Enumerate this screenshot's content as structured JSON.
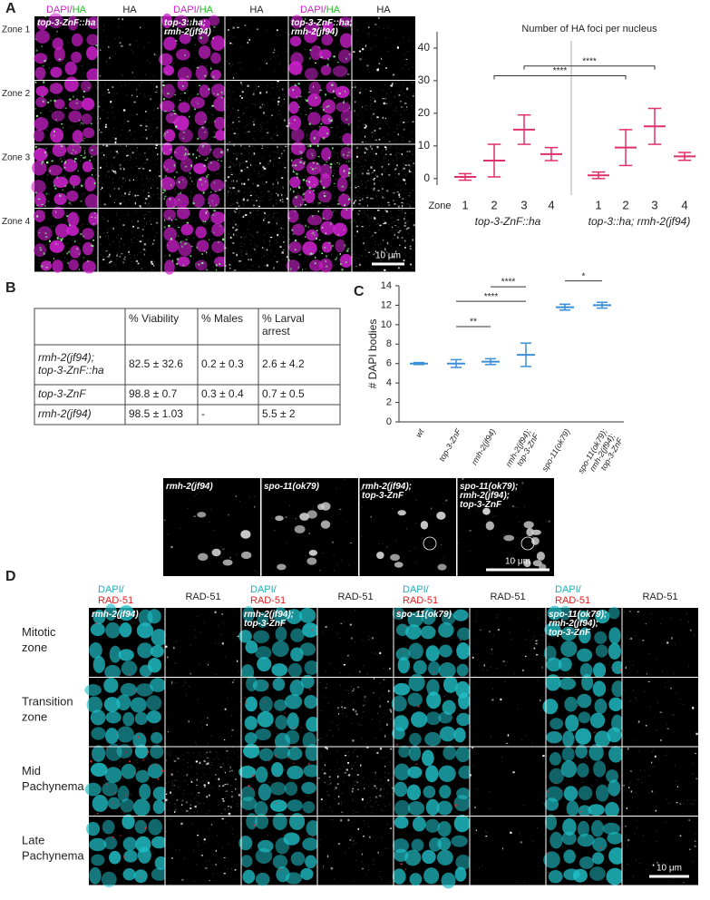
{
  "panel_a": {
    "label": "A",
    "zones": [
      "Zone 1",
      "Zone 2",
      "Zone 3",
      "Zone 4"
    ],
    "columns": [
      {
        "overlay": [
          "DAPI",
          "/",
          "HA"
        ],
        "single": "HA",
        "genotype": "top-3-ZnF::ha"
      },
      {
        "overlay": [
          "DAPI",
          "/",
          "HA"
        ],
        "single": "HA",
        "genotype": "top-3::ha; rmh-2(jf94)"
      },
      {
        "overlay": [
          "DAPI",
          "/",
          "HA"
        ],
        "single": "HA",
        "genotype": "top-3-ZnF::ha; rmh-2(jf94)"
      }
    ],
    "scale_bar": "10 μm"
  },
  "panel_b": {
    "label": "B",
    "header": [
      "% Viability",
      "% Males",
      "% Larval arrest"
    ],
    "rows": [
      [
        "rmh-2(jf94); top-3-ZnF::ha",
        "82.5  ± 32.6",
        "0.2 ± 0.3",
        "2.6 ± 4.2"
      ],
      [
        "top-3-ZnF",
        "98.8 ± 0.7",
        "0.3 ± 0.4",
        "0.7 ± 0.5"
      ],
      [
        "rmh-2(jf94)",
        "98.5 ± 1.03",
        "-",
        "5.5 ± 2"
      ]
    ]
  },
  "panel_c": {
    "label": "C",
    "images": [
      "rmh-2(jf94)",
      "spo-11(ok79)",
      "rmh-2(jf94); top-3-ZnF",
      "spo-11(ok79); rmh-2(jf94); top-3-ZnF"
    ],
    "scale_bar": "10 μm"
  },
  "panel_d": {
    "label": "D",
    "rows": [
      "Mitotic zone",
      "Transition zone",
      "Mid Pachynema",
      "Late Pachynema"
    ],
    "columns": [
      {
        "overlay": [
          "DAPI/",
          "RAD-51"
        ],
        "single": "RAD-51",
        "genotype": "rmh-2(jf94)"
      },
      {
        "overlay": [
          "DAPI/",
          "RAD-51"
        ],
        "single": "RAD-51",
        "genotype": "rmh-2(jf94); top-3-ZnF"
      },
      {
        "overlay": [
          "DAPI/",
          "RAD-51"
        ],
        "single": "RAD-51",
        "genotype": "spo-11(ok79)"
      },
      {
        "overlay": [
          "DAPI/",
          "RAD-51"
        ],
        "single": "RAD-51",
        "genotype": "spo-11(ok79); rmh-2(jf94); top-3-ZnF"
      }
    ],
    "scale_bar": "10 μm"
  },
  "chart_data": [
    {
      "type": "scatter",
      "title": "Number of HA foci per nucleus",
      "x_label": "Zone",
      "groups": [
        {
          "name": "top-3-ZnF::ha",
          "categories": [
            "1",
            "2",
            "3",
            "4"
          ],
          "values": [
            0.5,
            5.5,
            15,
            7.5
          ],
          "errors": [
            1,
            5,
            4.5,
            2
          ]
        },
        {
          "name": "top-3::ha; rmh-2(jf94)",
          "categories": [
            "1",
            "2",
            "3",
            "4"
          ],
          "values": [
            1,
            9.5,
            16,
            6.8
          ],
          "errors": [
            1,
            5.5,
            5.5,
            1.2
          ]
        }
      ],
      "ylim": [
        -2,
        45
      ],
      "yticks": [
        0,
        10,
        20,
        30,
        40
      ],
      "color": "#e0306a",
      "comparisons": [
        {
          "label": "****",
          "from": [
            0,
            1
          ],
          "to": [
            1,
            1
          ],
          "y": 31.5
        },
        {
          "label": "****",
          "from": [
            0,
            2
          ],
          "to": [
            1,
            2
          ],
          "y": 34.5
        }
      ]
    },
    {
      "type": "scatter",
      "y_label": "# DAPI bodies",
      "categories": [
        "wt",
        "top-3-ZnF",
        "rmh-2(jf94)",
        "rmh-2(jf94); top-3-ZnF",
        "spo-11(ok79)",
        "spo-11(ok79); rmh-2(jf94); top-3-ZnF"
      ],
      "values": [
        6,
        6,
        6.2,
        6.9,
        11.8,
        12
      ],
      "errors": [
        0.1,
        0.4,
        0.3,
        1.2,
        0.3,
        0.3
      ],
      "ylim": [
        0,
        14
      ],
      "yticks": [
        0,
        2,
        4,
        6,
        8,
        10,
        12,
        14
      ],
      "color": "#3a8fd6",
      "comparisons": [
        {
          "label": "**",
          "from": 1,
          "to": 2,
          "y": 9.8
        },
        {
          "label": "****",
          "from": 1,
          "to": 3,
          "y": 12.4
        },
        {
          "label": "****",
          "from": 2,
          "to": 3,
          "y": 13.9
        },
        {
          "label": "*",
          "from": 4,
          "to": 5,
          "y": 14.5
        }
      ]
    }
  ]
}
